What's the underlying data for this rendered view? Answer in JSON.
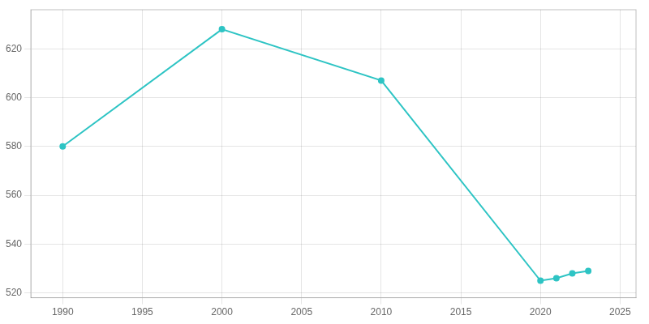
{
  "chart_data": {
    "type": "line",
    "x": [
      1990,
      2000,
      2010,
      2020,
      2021,
      2022,
      2023
    ],
    "values": [
      580,
      628,
      607,
      525,
      526,
      528,
      529
    ],
    "color": "#2ec4c4",
    "marker": "circle",
    "xlim": [
      1988,
      2026
    ],
    "ylim": [
      518,
      636
    ],
    "xticks": [
      1990,
      1995,
      2000,
      2005,
      2010,
      2015,
      2020,
      2025
    ],
    "yticks": [
      520,
      540,
      560,
      580,
      600,
      620
    ],
    "grid": true
  }
}
